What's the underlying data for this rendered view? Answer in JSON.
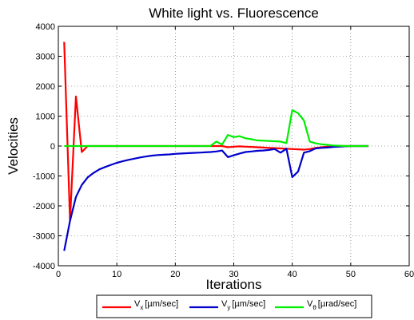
{
  "chart_data": {
    "type": "line",
    "title": "White light vs. Fluorescence",
    "xlabel": "Iterations",
    "ylabel": "Velocities",
    "xlim": [
      0,
      60
    ],
    "ylim": [
      -4000,
      4000
    ],
    "xticks": [
      0,
      10,
      20,
      30,
      40,
      50,
      60
    ],
    "yticks": [
      -4000,
      -3000,
      -2000,
      -1000,
      0,
      1000,
      2000,
      3000,
      4000
    ],
    "grid": true,
    "legend_position": "bottom",
    "series": [
      {
        "name_main": "V",
        "name_sub": "x",
        "name_rest": "[µm/sec]",
        "color": "#ff0000",
        "x": [
          1,
          2,
          3,
          4,
          5,
          6,
          7,
          8,
          9,
          10,
          11,
          12,
          13,
          14,
          15,
          16,
          17,
          18,
          19,
          20,
          21,
          22,
          23,
          24,
          25,
          26,
          27,
          28,
          29,
          30,
          31,
          32,
          33,
          34,
          35,
          36,
          37,
          38,
          39,
          40,
          41,
          42,
          43,
          44,
          45,
          46,
          47,
          48,
          49,
          50,
          51,
          52,
          53
        ],
        "y": [
          3480,
          -2500,
          1660,
          -200,
          0,
          0,
          0,
          0,
          0,
          0,
          0,
          0,
          0,
          0,
          0,
          0,
          0,
          0,
          0,
          0,
          0,
          0,
          0,
          0,
          0,
          0,
          0,
          0,
          -40,
          -20,
          -10,
          -20,
          -30,
          -40,
          -50,
          -60,
          -70,
          -80,
          -90,
          -100,
          -110,
          -120,
          -100,
          -60,
          -40,
          -20,
          -10,
          0,
          0,
          0,
          0,
          0,
          0
        ]
      },
      {
        "name_main": "V",
        "name_sub": "y",
        "name_rest": "[µm/sec]",
        "color": "#0000cc",
        "x": [
          1,
          2,
          3,
          4,
          5,
          6,
          7,
          8,
          9,
          10,
          11,
          12,
          13,
          14,
          15,
          16,
          17,
          18,
          19,
          20,
          21,
          22,
          23,
          24,
          25,
          26,
          27,
          28,
          29,
          30,
          31,
          32,
          33,
          34,
          35,
          36,
          37,
          38,
          39,
          40,
          41,
          42,
          43,
          44,
          45,
          46,
          47,
          48,
          49,
          50,
          51,
          52,
          53
        ],
        "y": [
          -3500,
          -2500,
          -1700,
          -1300,
          -1050,
          -900,
          -780,
          -700,
          -630,
          -560,
          -510,
          -460,
          -420,
          -380,
          -350,
          -320,
          -300,
          -290,
          -280,
          -260,
          -250,
          -240,
          -230,
          -220,
          -210,
          -200,
          -180,
          -150,
          -370,
          -310,
          -250,
          -200,
          -180,
          -160,
          -150,
          -130,
          -100,
          -220,
          -90,
          -1040,
          -850,
          -220,
          -170,
          -80,
          -60,
          -50,
          -30,
          -20,
          -10,
          0,
          0,
          0,
          0
        ]
      },
      {
        "name_main": "V",
        "name_sub": "θ",
        "name_rest": "[µrad/sec]",
        "color": "#00ee00",
        "x": [
          1,
          2,
          3,
          4,
          5,
          6,
          7,
          8,
          9,
          10,
          11,
          12,
          13,
          14,
          15,
          16,
          17,
          18,
          19,
          20,
          21,
          22,
          23,
          24,
          25,
          26,
          27,
          28,
          29,
          30,
          31,
          32,
          33,
          34,
          35,
          36,
          37,
          38,
          39,
          40,
          41,
          42,
          43,
          44,
          45,
          46,
          47,
          48,
          49,
          50,
          51,
          52,
          53
        ],
        "y": [
          0,
          0,
          0,
          0,
          0,
          0,
          0,
          0,
          0,
          0,
          0,
          0,
          0,
          0,
          0,
          0,
          0,
          0,
          0,
          0,
          0,
          0,
          0,
          0,
          0,
          0,
          150,
          50,
          370,
          300,
          330,
          260,
          230,
          190,
          180,
          170,
          160,
          150,
          100,
          1200,
          1100,
          850,
          150,
          90,
          60,
          40,
          20,
          10,
          0,
          0,
          0,
          0,
          0
        ]
      }
    ]
  }
}
